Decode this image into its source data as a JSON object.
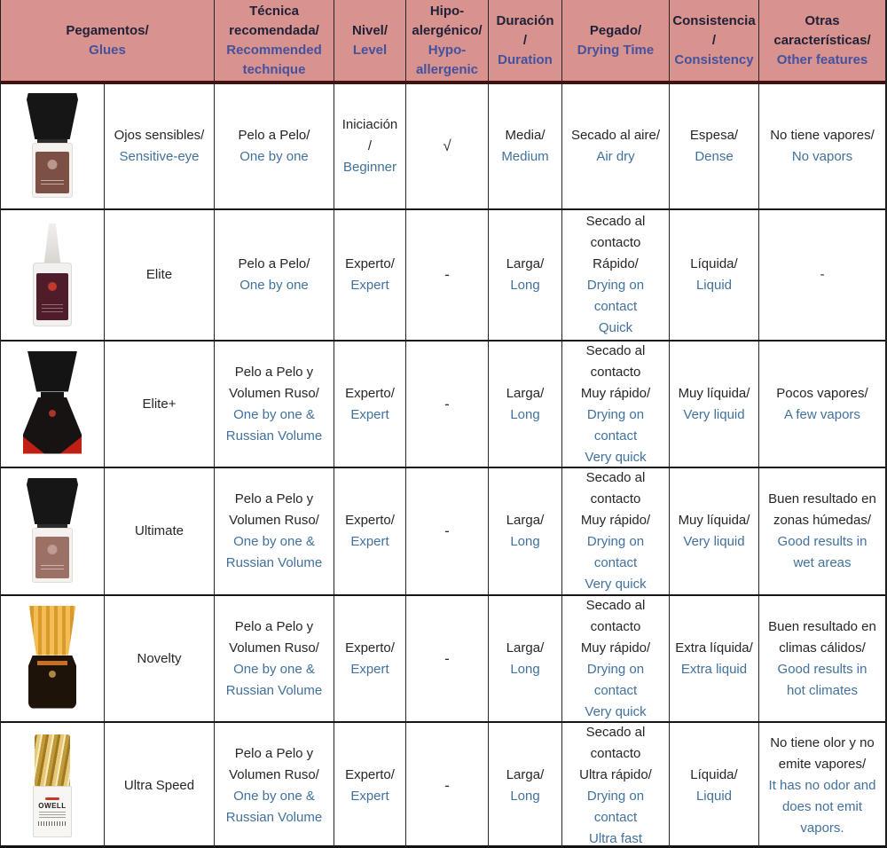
{
  "colors": {
    "header_bg": "#d8938f",
    "spanish_text": "#262626",
    "english_text": "#41719c",
    "header_spanish_text": "#21213a",
    "header_english_text": "#44519e",
    "grid_line": "#262626",
    "header_divider_line": "#401310",
    "elite_plus_accent_red": "#c02014",
    "novelty_cap_yellow": "#f4bc52",
    "ultra_speed_cap_gold": "#e7c878"
  },
  "header": {
    "cells": [
      {
        "es": "Pegamentos/",
        "en": "Glues"
      },
      {
        "es": "Técnica\nrecomendada/",
        "en": "Recommended\ntechnique"
      },
      {
        "es": "Nivel/",
        "en": "Level"
      },
      {
        "es": "Hipo-\nalergénico/",
        "en": "Hypo-\nallergenic"
      },
      {
        "es": "Duración\n/",
        "en": "Duration"
      },
      {
        "es": "Pegado/",
        "en": "Drying Time"
      },
      {
        "es": "Consistencia\n/",
        "en": "Consistency"
      },
      {
        "es": "Otras\ncaracterísticas/",
        "en": "Other features"
      }
    ]
  },
  "rows": [
    {
      "product": {
        "es": "Ojos sensibles/",
        "en": "Sensitive-eye",
        "icon": "glue-bottle-black-flared-cap-brown-label"
      },
      "technique": {
        "es": "Pelo a Pelo/",
        "en": "One by one"
      },
      "level": {
        "es": "Iniciación\n/",
        "en": "Beginner"
      },
      "hypo": "√",
      "duration": {
        "es": "Media/",
        "en": "Medium"
      },
      "drying": {
        "es": "Secado al aire/",
        "en": "Air dry"
      },
      "consistency": {
        "es": "Espesa/",
        "en": "Dense"
      },
      "other": {
        "es": "No tiene vapores/",
        "en": "No vapors"
      }
    },
    {
      "product": {
        "es": "Elite",
        "en": "",
        "icon": "glue-bottle-white-dropper-maroon-label"
      },
      "technique": {
        "es": "Pelo a Pelo/",
        "en": "One by one"
      },
      "level": {
        "es": "Experto/",
        "en": "Expert"
      },
      "hypo": "-",
      "duration": {
        "es": "Larga/",
        "en": "Long"
      },
      "drying": {
        "es": "Secado al\ncontacto\nRápido/",
        "en": "Drying on\ncontact\nQuick"
      },
      "consistency": {
        "es": "Líquida/",
        "en": "Liquid"
      },
      "other": {
        "es": "-",
        "en": ""
      }
    },
    {
      "product": {
        "es": "Elite+",
        "en": "",
        "icon": "glue-bottle-black-body-red-accents"
      },
      "technique": {
        "es": "Pelo a Pelo y\nVolumen Ruso/",
        "en": "One by one &\nRussian Volume"
      },
      "level": {
        "es": "Experto/",
        "en": "Expert"
      },
      "hypo": "-",
      "duration": {
        "es": "Larga/",
        "en": "Long"
      },
      "drying": {
        "es": "Secado al\ncontacto\nMuy rápido/",
        "en": "Drying on\ncontact\nVery quick"
      },
      "consistency": {
        "es": "Muy líquida/",
        "en": "Very liquid"
      },
      "other": {
        "es": "Pocos vapores/",
        "en": "A few vapors"
      }
    },
    {
      "product": {
        "es": "Ultimate",
        "en": "",
        "icon": "glue-bottle-black-flared-cap-mauve-label"
      },
      "technique": {
        "es": "Pelo a Pelo y\nVolumen Ruso/",
        "en": "One by one &\nRussian Volume"
      },
      "level": {
        "es": "Experto/",
        "en": "Expert"
      },
      "hypo": "-",
      "duration": {
        "es": "Larga/",
        "en": "Long"
      },
      "drying": {
        "es": "Secado al\ncontacto\nMuy rápido/",
        "en": "Drying on\ncontact\nVery quick"
      },
      "consistency": {
        "es": "Muy líquida/",
        "en": "Very liquid"
      },
      "other": {
        "es": "Buen resultado en\nzonas húmedas/",
        "en": "Good results in\nwet areas"
      }
    },
    {
      "product": {
        "es": "Novelty",
        "en": "",
        "icon": "glue-bottle-yellow-ribbed-cap-dark-body"
      },
      "technique": {
        "es": "Pelo a Pelo y\nVolumen Ruso/",
        "en": "One by one &\nRussian Volume"
      },
      "level": {
        "es": "Experto/",
        "en": "Expert"
      },
      "hypo": "-",
      "duration": {
        "es": "Larga/",
        "en": "Long"
      },
      "drying": {
        "es": "Secado al\ncontacto\nMuy rápido/",
        "en": "Drying on\ncontact\nVery quick"
      },
      "consistency": {
        "es": "Extra líquida/",
        "en": "Extra liquid"
      },
      "other": {
        "es": "Buen resultado en\nclimas cálidos/",
        "en": "Good results in\nhot climates"
      }
    },
    {
      "product": {
        "es": "Ultra Speed",
        "en": "",
        "icon": "glue-bottle-gold-cap-white-body",
        "bottle_text": "OWELL"
      },
      "technique": {
        "es": "Pelo a Pelo y\nVolumen Ruso/",
        "en": "One by one &\nRussian Volume"
      },
      "level": {
        "es": "Experto/",
        "en": "Expert"
      },
      "hypo": "-",
      "duration": {
        "es": "Larga/",
        "en": "Long"
      },
      "drying": {
        "es": "Secado al\ncontacto\nUltra rápido/",
        "en": "Drying on\ncontact\nUltra fast"
      },
      "consistency": {
        "es": "Líquida/",
        "en": "Liquid"
      },
      "other": {
        "es": "No tiene olor y no\nemite vapores/",
        "en": "It has no odor and\ndoes not emit\nvapors."
      }
    }
  ]
}
